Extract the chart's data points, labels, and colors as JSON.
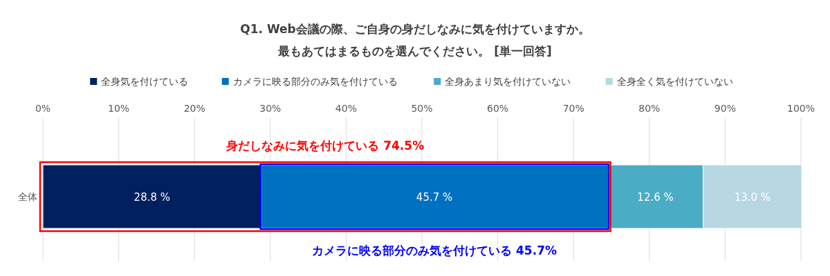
{
  "chart_data": {
    "type": "bar",
    "orientation": "horizontal",
    "stacked": true,
    "title": "Q1. Web会議の際、ご自身の身だしなみに気を付けていますか。",
    "subtitle": "最もあてはまるものを選んでください。 [単一回答]",
    "categories": [
      "全体"
    ],
    "series": [
      {
        "name": "全身気を付けている",
        "color": "#002060",
        "values": [
          28.8
        ],
        "value_labels": [
          "28.8  %"
        ]
      },
      {
        "name": "カメラに映る部分のみ気を付けている",
        "color": "#0070c0",
        "values": [
          45.7
        ],
        "value_labels": [
          "45.7 %"
        ]
      },
      {
        "name": "全身あまり気を付けていない",
        "color": "#4bacc6",
        "values": [
          12.6
        ],
        "value_labels": [
          "12.6 %"
        ]
      },
      {
        "name": "全身全く気を付けていない",
        "color": "#b7d7e3",
        "values": [
          13.0
        ],
        "value_labels": [
          "13.0 %"
        ]
      }
    ],
    "xlim": [
      0,
      100
    ],
    "xticks": [
      {
        "value": 0,
        "label": "0%"
      },
      {
        "value": 10,
        "label": "10%"
      },
      {
        "value": 20,
        "label": "20%"
      },
      {
        "value": 30,
        "label": "30%"
      },
      {
        "value": 40,
        "label": "40%"
      },
      {
        "value": 50,
        "label": "50%"
      },
      {
        "value": 60,
        "label": "60%"
      },
      {
        "value": 70,
        "label": "70%"
      },
      {
        "value": 80,
        "label": "80%"
      },
      {
        "value": 90,
        "label": "90%"
      },
      {
        "value": 100,
        "label": "100%"
      }
    ],
    "annotations": [
      "身だしなみに気を付けている 74.5%",
      "カメラに映る部分のみ気を付けている 45.7%"
    ],
    "grid": "x",
    "legend": "top"
  }
}
